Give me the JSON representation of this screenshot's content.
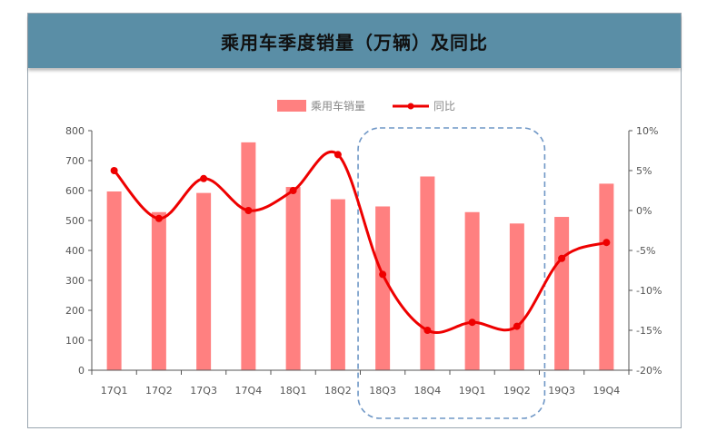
{
  "colors": {
    "title_bar": "#5a8ea6",
    "bar": "#ff8080",
    "line": "#ee0000",
    "highlight_box": "#6f97c6"
  },
  "chart_data": {
    "type": "bar",
    "title": "乘用车季度销量（万辆）及同比",
    "categories": [
      "17Q1",
      "17Q2",
      "17Q3",
      "17Q4",
      "18Q1",
      "18Q2",
      "18Q3",
      "18Q4",
      "19Q1",
      "19Q2",
      "19Q3",
      "19Q4"
    ],
    "series": [
      {
        "name": "乘用车销量",
        "type": "bar",
        "axis": "left",
        "values": [
          597,
          528,
          592,
          761,
          612,
          571,
          547,
          647,
          528,
          490,
          512,
          623
        ]
      },
      {
        "name": "同比",
        "type": "line",
        "axis": "right",
        "values": [
          5.0,
          -1.0,
          4.0,
          0.0,
          2.5,
          7.0,
          -8.0,
          -15.0,
          -14.0,
          -14.5,
          -6.0,
          -4.0
        ]
      }
    ],
    "ylim": [
      0,
      800
    ],
    "y_ticks": [
      0,
      100,
      200,
      300,
      400,
      500,
      600,
      700,
      800
    ],
    "y_tick_labels": [
      "0",
      "100",
      "200",
      "300",
      "400",
      "500",
      "600",
      "700",
      "800"
    ],
    "y2lim": [
      -20,
      10
    ],
    "y2_ticks": [
      10,
      5,
      0,
      -5,
      -10,
      -15,
      -20
    ],
    "y2_tick_labels": [
      "10%",
      "5%",
      "0%",
      "-5%",
      "-10%",
      "-15%",
      "-20%"
    ],
    "highlight_range": [
      "18Q3",
      "19Q2"
    ],
    "legend_position": "top-center",
    "grid": false
  }
}
